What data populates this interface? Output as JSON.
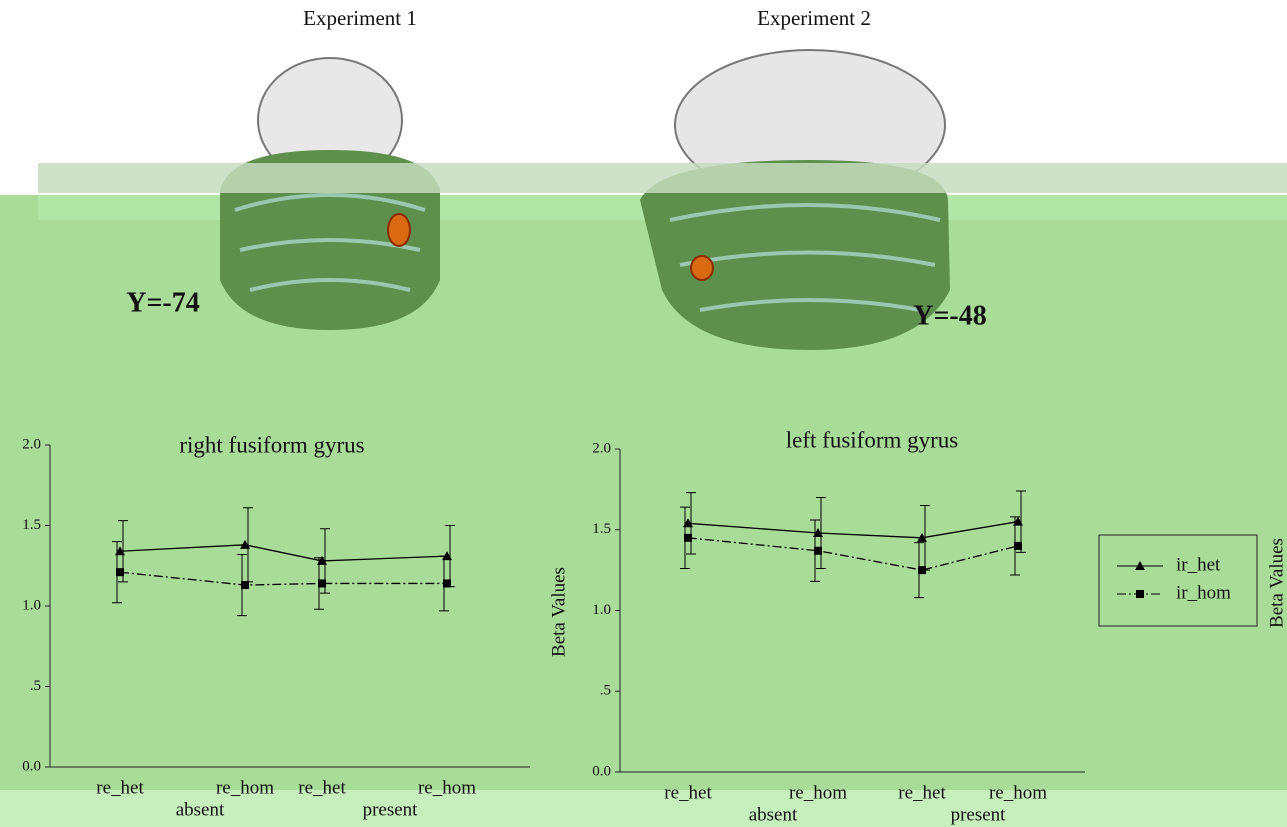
{
  "header": {
    "left_title": "Experiment 1",
    "right_title": "Experiment 2",
    "left_slice": "Y=-74",
    "right_slice": "Y=-48"
  },
  "chart_data": [
    {
      "type": "line",
      "title": "right fusiform gyrus",
      "categories": [
        "re_het",
        "re_hom",
        "re_het",
        "re_hom"
      ],
      "groups": [
        "absent",
        "present"
      ],
      "series": [
        {
          "color": "#000000",
          "marker": "triangle",
          "dash": false,
          "values": [
            1.34,
            1.38,
            1.28,
            1.31
          ],
          "errors": [
            0.19,
            0.23,
            0.2,
            0.19
          ]
        },
        {
          "color": "#000000",
          "marker": "square",
          "dash": true,
          "values": [
            1.21,
            1.13,
            1.14,
            1.14
          ],
          "errors": [
            0.19,
            0.19,
            0.16,
            0.17
          ]
        }
      ],
      "ylim": [
        0,
        2
      ],
      "yticks": [
        {
          "value": 0,
          "label": "0.0"
        },
        {
          "value": 0.5,
          "label": ".5"
        },
        {
          "value": 1,
          "label": "1.0"
        },
        1.5,
        {
          "value": 2,
          "label": "2.0"
        }
      ]
    },
    {
      "type": "line",
      "title": "left fusiform gyrus",
      "y_label": "Beta Values",
      "side_label": "Beta Values",
      "categories": [
        "re_het",
        "re_hom",
        "re_het",
        "re_hom"
      ],
      "groups": [
        "absent",
        "present"
      ],
      "series": [
        {
          "name": "ir_het",
          "color": "#000000",
          "marker": "triangle",
          "dash": false,
          "values": [
            1.54,
            1.48,
            1.45,
            1.55
          ],
          "errors": [
            0.19,
            0.22,
            0.2,
            0.19
          ]
        },
        {
          "name": "ir_hom",
          "color": "#000000",
          "marker": "square",
          "dash": true,
          "values": [
            1.45,
            1.37,
            1.25,
            1.4
          ],
          "errors": [
            0.19,
            0.19,
            0.17,
            0.18
          ]
        }
      ],
      "ylim": [
        0,
        2
      ],
      "yticks": [
        {
          "value": 0,
          "label": "0.0"
        },
        {
          "value": 0.5,
          "label": ".5"
        },
        {
          "value": 1,
          "label": "1.0"
        },
        1.5,
        {
          "value": 2,
          "label": "2.0"
        }
      ]
    }
  ]
}
